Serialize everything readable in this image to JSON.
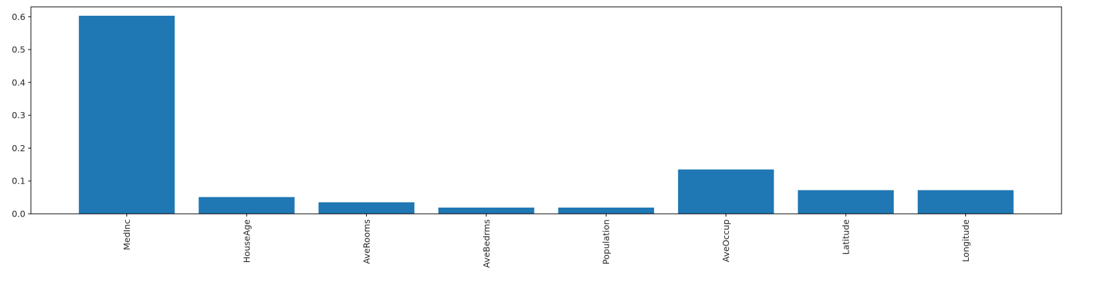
{
  "chart_data": {
    "type": "bar",
    "categories": [
      "MedInc",
      "HouseAge",
      "AveRooms",
      "AveBedrms",
      "Population",
      "AveOccup",
      "Latitude",
      "Longitude"
    ],
    "values": [
      0.603,
      0.051,
      0.035,
      0.019,
      0.019,
      0.135,
      0.072,
      0.072
    ],
    "ylim": [
      0,
      0.63
    ],
    "yticks": [
      0.0,
      0.1,
      0.2,
      0.3,
      0.4,
      0.5,
      0.6
    ],
    "ytick_labels": [
      "0.0",
      "0.1",
      "0.2",
      "0.3",
      "0.4",
      "0.5",
      "0.6"
    ],
    "bar_color": "#1f77b4",
    "grid": false,
    "title": "",
    "xlabel": "",
    "ylabel": ""
  }
}
